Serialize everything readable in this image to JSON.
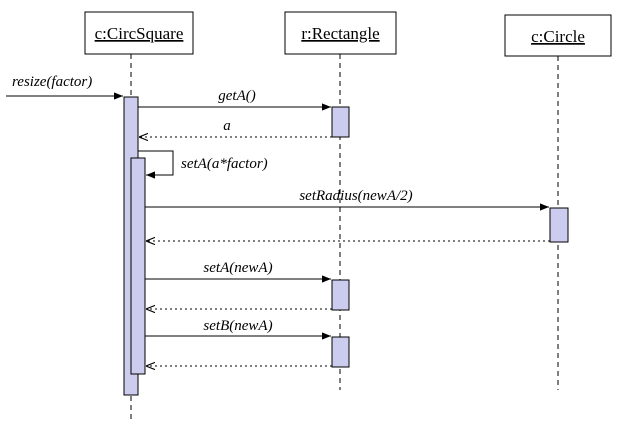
{
  "lifelines": [
    {
      "id": "c_circsquare",
      "label": "c:CircSquare"
    },
    {
      "id": "r_rectangle",
      "label": "r:Rectangle"
    },
    {
      "id": "c_circle",
      "label": "c:Circle"
    }
  ],
  "messages": [
    {
      "id": "resize",
      "label": "resize(factor)",
      "kind": "call"
    },
    {
      "id": "getA",
      "label": "getA()",
      "kind": "call"
    },
    {
      "id": "getA_return",
      "label": "a",
      "kind": "return"
    },
    {
      "id": "setA_self",
      "label": "setA(a*factor)",
      "kind": "self-call"
    },
    {
      "id": "setRadius",
      "label": "setRadius(newA/2)",
      "kind": "call"
    },
    {
      "id": "setRadius_return",
      "label": "",
      "kind": "return"
    },
    {
      "id": "setA",
      "label": "setA(newA)",
      "kind": "call"
    },
    {
      "id": "setA_return",
      "label": "",
      "kind": "return"
    },
    {
      "id": "setB",
      "label": "setB(newA)",
      "kind": "call"
    },
    {
      "id": "setB_return",
      "label": "",
      "kind": "return"
    }
  ],
  "colors": {
    "activation_fill": "#ccccee",
    "stroke": "#000000",
    "background": "#ffffff"
  }
}
